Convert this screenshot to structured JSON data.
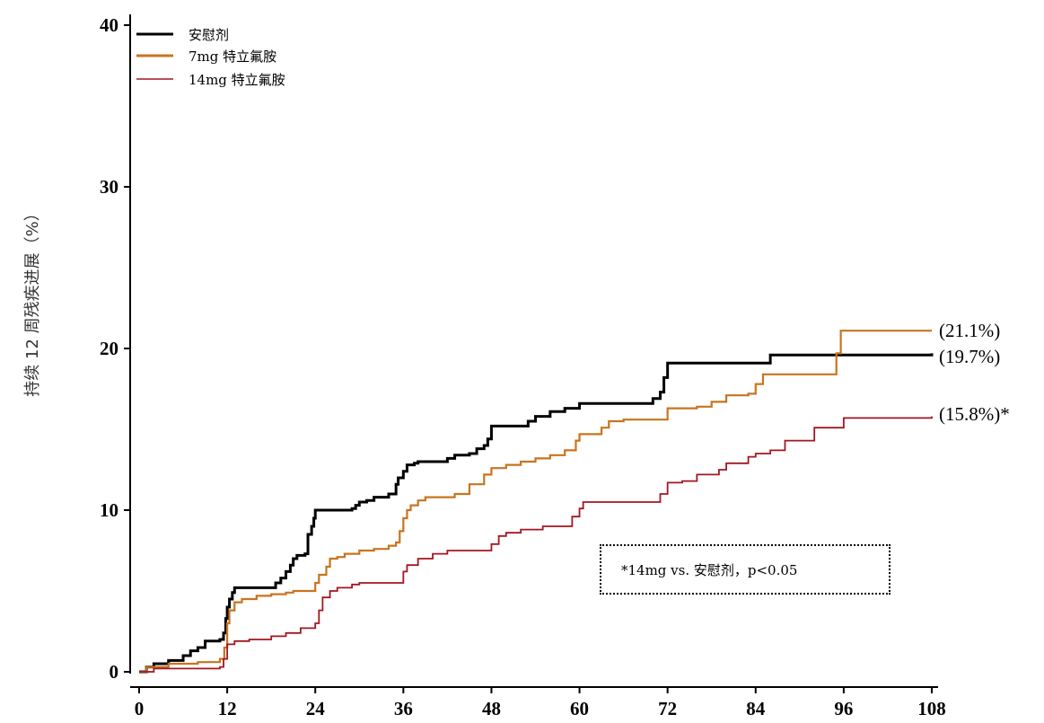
{
  "chart_data": {
    "type": "line",
    "title": "",
    "xlabel": "",
    "ylabel": "持续 12 周残疾进展（%）",
    "xlim": [
      0,
      108
    ],
    "ylim": [
      0,
      40
    ],
    "xticks": [
      0,
      12,
      24,
      36,
      48,
      60,
      72,
      84,
      96,
      108
    ],
    "yticks": [
      0,
      10,
      20,
      30,
      40
    ],
    "grid": false,
    "legend_position": "top-left",
    "series": [
      {
        "name": "安慰剂",
        "color": "#000000",
        "end_label": "(19.7%)",
        "points": [
          [
            0,
            0
          ],
          [
            1,
            0.3
          ],
          [
            2,
            0.5
          ],
          [
            4,
            0.7
          ],
          [
            6,
            1.0
          ],
          [
            7,
            1.3
          ],
          [
            8,
            1.5
          ],
          [
            9,
            1.9
          ],
          [
            11,
            2.0
          ],
          [
            11.5,
            2.4
          ],
          [
            11.8,
            3.3
          ],
          [
            12,
            4.0
          ],
          [
            12.3,
            4.5
          ],
          [
            12.7,
            4.9
          ],
          [
            13,
            5.2
          ],
          [
            18,
            5.2
          ],
          [
            18.6,
            5.5
          ],
          [
            19.3,
            5.8
          ],
          [
            20,
            6.2
          ],
          [
            20.6,
            6.6
          ],
          [
            21,
            7.0
          ],
          [
            21.5,
            7.2
          ],
          [
            22.6,
            7.3
          ],
          [
            23,
            8.5
          ],
          [
            23.5,
            9.0
          ],
          [
            23.8,
            9.5
          ],
          [
            24,
            10.0
          ],
          [
            29,
            10.1
          ],
          [
            29.5,
            10.3
          ],
          [
            30,
            10.5
          ],
          [
            31,
            10.6
          ],
          [
            32,
            10.8
          ],
          [
            34,
            11.0
          ],
          [
            35,
            11.6
          ],
          [
            35.3,
            12.0
          ],
          [
            36,
            12.4
          ],
          [
            36.5,
            12.8
          ],
          [
            37.5,
            12.9
          ],
          [
            38,
            13.0
          ],
          [
            42,
            13.2
          ],
          [
            43,
            13.4
          ],
          [
            45,
            13.5
          ],
          [
            46,
            13.8
          ],
          [
            47,
            14.0
          ],
          [
            47.5,
            14.4
          ],
          [
            48,
            15.2
          ],
          [
            52,
            15.2
          ],
          [
            53,
            15.5
          ],
          [
            54,
            15.8
          ],
          [
            56,
            16.1
          ],
          [
            58,
            16.3
          ],
          [
            60,
            16.6
          ],
          [
            70,
            16.9
          ],
          [
            71,
            17.3
          ],
          [
            71.5,
            18.2
          ],
          [
            72,
            19.1
          ],
          [
            85,
            19.1
          ],
          [
            86,
            19.6
          ],
          [
            96,
            19.6
          ],
          [
            108,
            19.7
          ]
        ]
      },
      {
        "name": "7mg 特立氟胺",
        "color": "#c8741e",
        "end_label": "(21.1%)",
        "points": [
          [
            0,
            0
          ],
          [
            1,
            0.3
          ],
          [
            4,
            0.5
          ],
          [
            8,
            0.6
          ],
          [
            10,
            0.6
          ],
          [
            11,
            0.8
          ],
          [
            11.6,
            1.5
          ],
          [
            12,
            3.0
          ],
          [
            12.3,
            3.8
          ],
          [
            13,
            4.3
          ],
          [
            14,
            4.5
          ],
          [
            16,
            4.7
          ],
          [
            18,
            4.8
          ],
          [
            20,
            4.9
          ],
          [
            21,
            5.0
          ],
          [
            23,
            5.0
          ],
          [
            24,
            5.5
          ],
          [
            24.5,
            6.0
          ],
          [
            25.5,
            6.5
          ],
          [
            26,
            7.0
          ],
          [
            27,
            7.1
          ],
          [
            28,
            7.3
          ],
          [
            30,
            7.5
          ],
          [
            32,
            7.6
          ],
          [
            34,
            7.8
          ],
          [
            35,
            8.0
          ],
          [
            35.5,
            8.7
          ],
          [
            36,
            9.5
          ],
          [
            36.5,
            10.0
          ],
          [
            37,
            10.3
          ],
          [
            38,
            10.6
          ],
          [
            39,
            10.8
          ],
          [
            43,
            11.0
          ],
          [
            45,
            11.6
          ],
          [
            47,
            12.2
          ],
          [
            48,
            12.6
          ],
          [
            50,
            12.8
          ],
          [
            52,
            13.0
          ],
          [
            54,
            13.2
          ],
          [
            56,
            13.4
          ],
          [
            58,
            13.7
          ],
          [
            59.5,
            14.3
          ],
          [
            60,
            14.7
          ],
          [
            63,
            15.1
          ],
          [
            64,
            15.5
          ],
          [
            66,
            15.6
          ],
          [
            70,
            15.6
          ],
          [
            72,
            16.3
          ],
          [
            76,
            16.4
          ],
          [
            78,
            16.7
          ],
          [
            80,
            17.1
          ],
          [
            83,
            17.2
          ],
          [
            84,
            17.8
          ],
          [
            85,
            18.4
          ],
          [
            94,
            18.4
          ],
          [
            95,
            19.7
          ],
          [
            95.6,
            21.1
          ],
          [
            108,
            21.1
          ]
        ]
      },
      {
        "name": "14mg 特立氟胺",
        "color": "#a31621",
        "end_label": "(15.8%)*",
        "points": [
          [
            0,
            0
          ],
          [
            2,
            0.2
          ],
          [
            11,
            0.3
          ],
          [
            11.5,
            0.8
          ],
          [
            12,
            1.7
          ],
          [
            13,
            1.9
          ],
          [
            15,
            2.0
          ],
          [
            18,
            2.2
          ],
          [
            20,
            2.4
          ],
          [
            22,
            2.7
          ],
          [
            24,
            3.0
          ],
          [
            24.5,
            3.8
          ],
          [
            25,
            4.6
          ],
          [
            26,
            5.0
          ],
          [
            27,
            5.2
          ],
          [
            29,
            5.4
          ],
          [
            30,
            5.5
          ],
          [
            34,
            5.5
          ],
          [
            36,
            6.2
          ],
          [
            36.5,
            6.6
          ],
          [
            38,
            7.0
          ],
          [
            40,
            7.3
          ],
          [
            42,
            7.5
          ],
          [
            45,
            7.5
          ],
          [
            48,
            7.9
          ],
          [
            49,
            8.4
          ],
          [
            50,
            8.6
          ],
          [
            52,
            8.8
          ],
          [
            55,
            9.0
          ],
          [
            58,
            9.0
          ],
          [
            59,
            9.6
          ],
          [
            60,
            10.1
          ],
          [
            60.5,
            10.5
          ],
          [
            64,
            10.5
          ],
          [
            70,
            10.5
          ],
          [
            71,
            11.0
          ],
          [
            72,
            11.7
          ],
          [
            74,
            11.8
          ],
          [
            76,
            12.2
          ],
          [
            79,
            12.5
          ],
          [
            80,
            12.9
          ],
          [
            83,
            13.3
          ],
          [
            84,
            13.5
          ],
          [
            86,
            13.7
          ],
          [
            88,
            14.3
          ],
          [
            92,
            15.1
          ],
          [
            96,
            15.7
          ],
          [
            108,
            15.8
          ]
        ]
      }
    ],
    "annotation": "*14mg vs.  安慰剂，p<0.05"
  }
}
